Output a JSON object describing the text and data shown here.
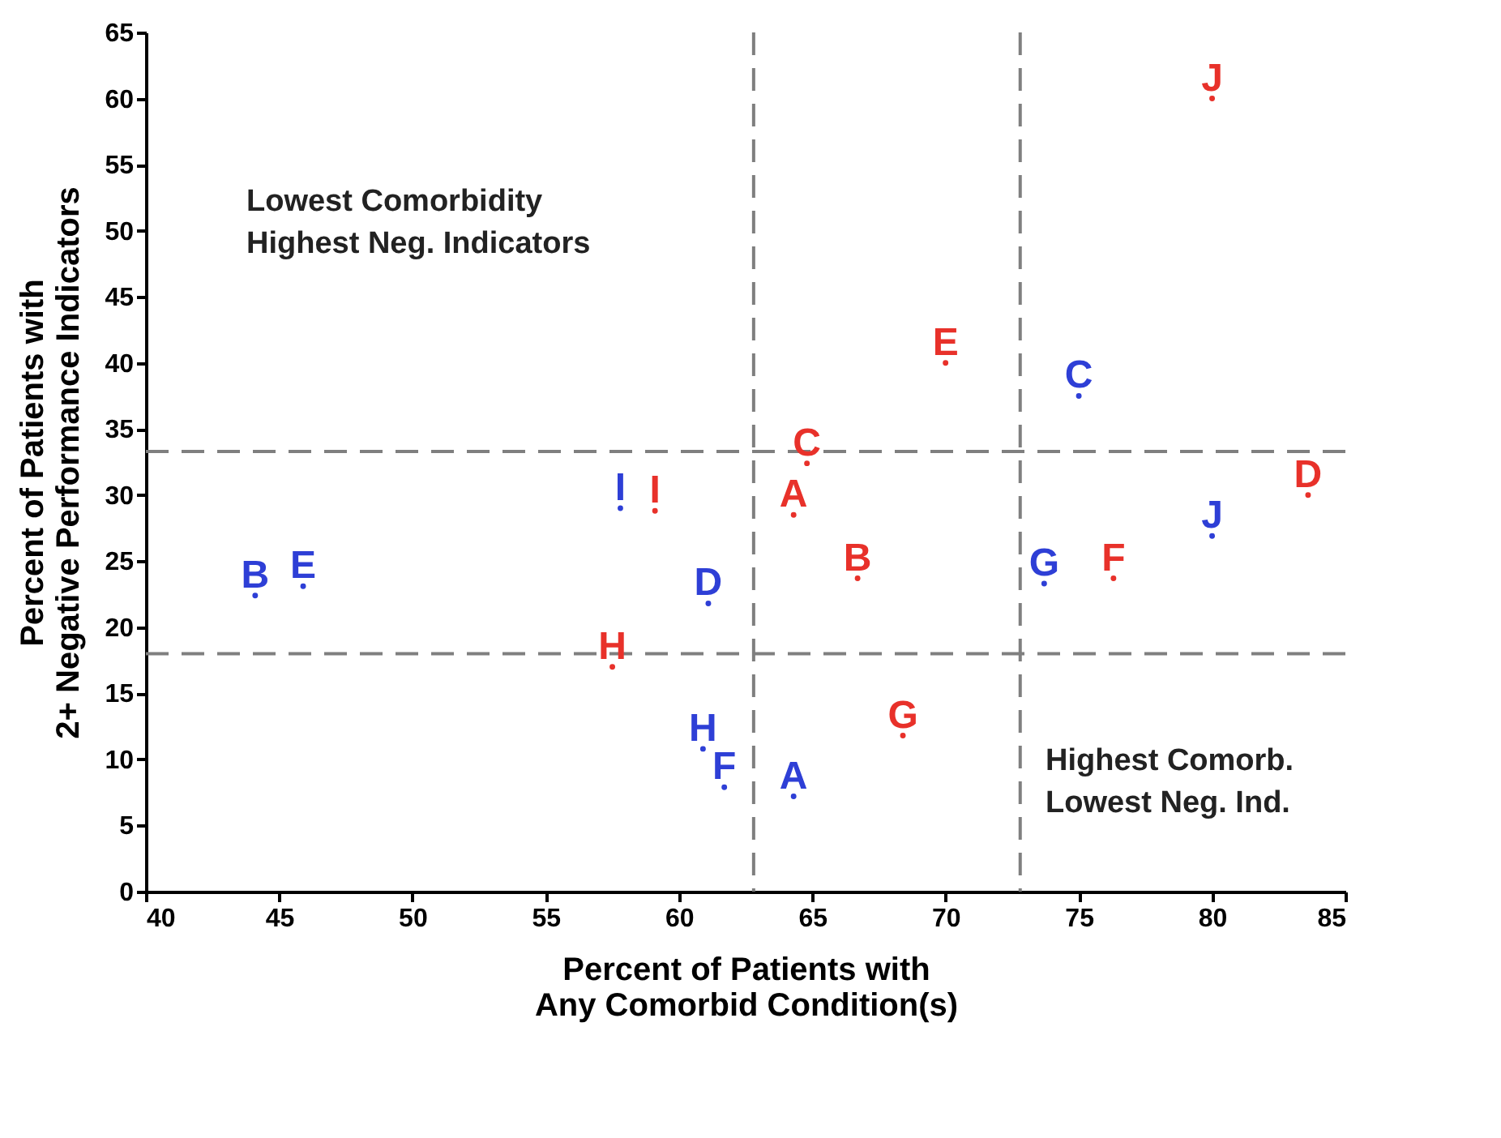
{
  "chart_data": {
    "type": "scatter",
    "xlabel": "Percent of Patients with\nAny Comorbid Condition(s)",
    "ylabel": "Percent of Patients with\n2+ Negative Performance Indicators",
    "xlim": [
      40,
      85
    ],
    "xticks": [
      40,
      45,
      50,
      55,
      60,
      65,
      70,
      75,
      80,
      85
    ],
    "ylim": [
      0,
      65
    ],
    "yticks": [
      0,
      5,
      10,
      15,
      20,
      25,
      30,
      35,
      40,
      45,
      50,
      55,
      60,
      65
    ],
    "grid": false,
    "legend": false,
    "marker": "none",
    "series": [
      {
        "color": "#e8312a",
        "x": [
          80.0,
          70.0,
          64.8,
          83.6,
          59.1,
          64.3,
          66.7,
          76.3,
          57.5,
          68.4
        ],
        "values": [
          60.0,
          40.0,
          32.4,
          30.0,
          28.8,
          28.5,
          23.7,
          23.7,
          17.0,
          11.8
        ],
        "value_labels": [
          "J",
          "E",
          "C",
          "D",
          "I",
          "A",
          "B",
          "F",
          "H",
          "G"
        ]
      },
      {
        "color": "#2e3fd6",
        "x": [
          75.0,
          57.8,
          80.0,
          44.1,
          45.9,
          61.1,
          73.7,
          60.9,
          61.7,
          64.3
        ],
        "values": [
          37.5,
          29.0,
          26.9,
          22.4,
          23.1,
          21.8,
          23.3,
          10.8,
          7.9,
          7.2
        ],
        "value_labels": [
          "C",
          "I",
          "J",
          "B",
          "E",
          "D",
          "G",
          "H",
          "F",
          "A"
        ]
      }
    ],
    "ref_lines": [
      {
        "axis": "x",
        "value": 62.8,
        "color": "#7f7f7f",
        "line_style": "dashed"
      },
      {
        "axis": "x",
        "value": 72.8,
        "color": "#7f7f7f",
        "line_style": "dashed"
      },
      {
        "axis": "y",
        "value": 33.3,
        "color": "#7f7f7f",
        "line_style": "dashed"
      },
      {
        "axis": "y",
        "value": 18,
        "color": "#7f7f7f",
        "line_style": "dashed"
      }
    ],
    "annotations": [
      "Lowest Comorbidity\nHighest Neg. Indicators",
      "Highest Comorb.\nLowest Neg. Ind."
    ]
  }
}
